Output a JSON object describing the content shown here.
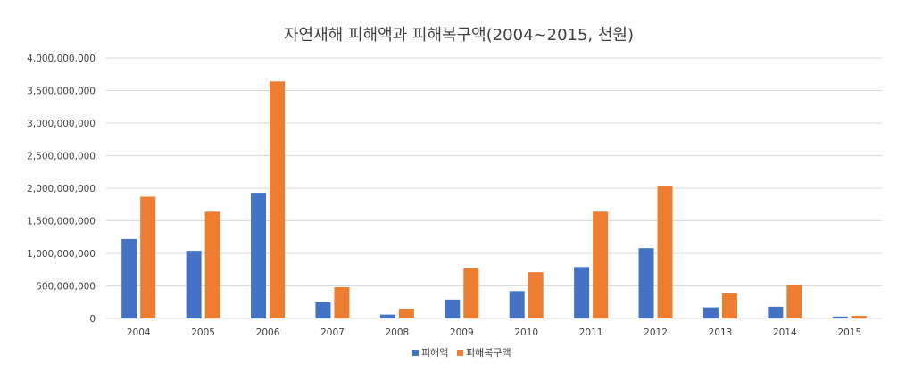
{
  "chart_data": {
    "type": "bar",
    "title": "자연재해 피해액과 피해복구액(2004~2015, 천원)",
    "xlabel": "",
    "ylabel": "",
    "ylim": [
      0,
      4000000000
    ],
    "yticks": [
      0,
      500000000,
      1000000000,
      1500000000,
      2000000000,
      2500000000,
      3000000000,
      3500000000,
      4000000000
    ],
    "ytick_labels": [
      "0",
      "500,000,000",
      "1,000,000,000",
      "1,500,000,000",
      "2,000,000,000",
      "2,500,000,000",
      "3,000,000,000",
      "3,500,000,000",
      "4,000,000,000"
    ],
    "categories": [
      "2004",
      "2005",
      "2006",
      "2007",
      "2008",
      "2009",
      "2010",
      "2011",
      "2012",
      "2013",
      "2014",
      "2015"
    ],
    "series": [
      {
        "name": "피해액",
        "color": "#4472c4",
        "values": [
          1220000000,
          1040000000,
          1930000000,
          250000000,
          60000000,
          290000000,
          420000000,
          790000000,
          1080000000,
          170000000,
          180000000,
          30000000
        ]
      },
      {
        "name": "피해복구액",
        "color": "#ed7d31",
        "values": [
          1870000000,
          1640000000,
          3640000000,
          480000000,
          150000000,
          770000000,
          710000000,
          1640000000,
          2040000000,
          390000000,
          510000000,
          40000000
        ]
      }
    ],
    "grid": true,
    "legend_position": "bottom"
  }
}
